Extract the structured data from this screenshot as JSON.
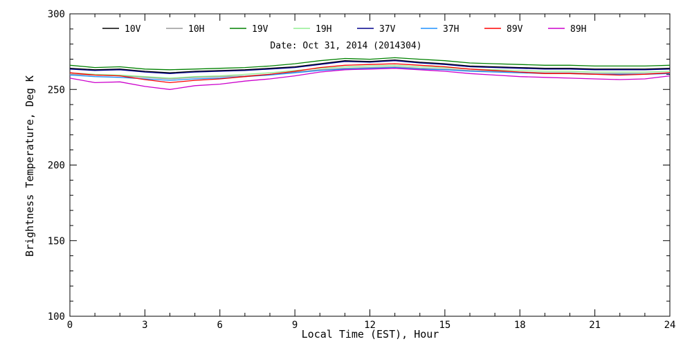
{
  "chart_data": {
    "type": "line",
    "title": "",
    "annotation": "Date: Oct 31, 2014 (2014304)",
    "xlabel": "Local Time (EST), Hour",
    "ylabel": "Brightness Temperature, Deg K",
    "xlim": [
      0,
      24
    ],
    "ylim": [
      100,
      300
    ],
    "xticks": [
      "0",
      "3",
      "6",
      "9",
      "12",
      "15",
      "18",
      "21",
      "24"
    ],
    "yticks": [
      "100",
      "150",
      "200",
      "250",
      "300"
    ],
    "grid": false,
    "legend_position": "top",
    "x": [
      0,
      1,
      2,
      3,
      4,
      5,
      6,
      7,
      8,
      9,
      10,
      11,
      12,
      13,
      14,
      15,
      16,
      17,
      18,
      19,
      20,
      21,
      22,
      23,
      24
    ],
    "series": [
      {
        "name": "10V",
        "color": "#000000",
        "values": [
          264.0,
          263.0,
          263.5,
          262.0,
          261.0,
          262.0,
          262.5,
          263.0,
          264.0,
          265.0,
          267.0,
          269.0,
          268.5,
          269.5,
          268.0,
          267.0,
          265.5,
          265.0,
          264.5,
          264.0,
          264.0,
          263.5,
          263.5,
          263.5,
          264.0
        ]
      },
      {
        "name": "10H",
        "color": "#999999",
        "values": [
          260.0,
          259.5,
          259.0,
          258.0,
          257.0,
          258.0,
          258.5,
          259.0,
          260.0,
          261.5,
          263.0,
          264.0,
          264.5,
          265.0,
          264.0,
          263.5,
          262.5,
          262.0,
          261.5,
          261.0,
          261.0,
          260.5,
          260.5,
          260.5,
          261.0
        ]
      },
      {
        "name": "19V",
        "color": "#008000",
        "values": [
          266.0,
          264.5,
          265.0,
          263.5,
          263.0,
          263.5,
          264.0,
          264.5,
          265.5,
          267.0,
          269.0,
          270.5,
          270.0,
          271.0,
          270.0,
          269.0,
          267.5,
          267.0,
          266.5,
          266.0,
          266.0,
          265.5,
          265.5,
          265.5,
          266.0
        ]
      },
      {
        "name": "19H",
        "color": "#90ee90",
        "values": [
          261.0,
          260.0,
          259.5,
          258.5,
          257.5,
          258.5,
          259.0,
          260.0,
          261.0,
          262.5,
          264.0,
          265.0,
          265.5,
          266.0,
          265.0,
          264.5,
          263.5,
          263.0,
          262.5,
          262.0,
          262.0,
          261.5,
          261.5,
          261.5,
          262.0
        ]
      },
      {
        "name": "37V",
        "color": "#00008b",
        "values": [
          263.5,
          262.5,
          263.0,
          261.5,
          260.5,
          261.5,
          262.0,
          262.5,
          263.5,
          264.5,
          266.5,
          268.5,
          268.0,
          269.0,
          267.5,
          266.5,
          265.0,
          264.5,
          264.0,
          263.5,
          263.5,
          263.0,
          263.0,
          263.0,
          263.5
        ]
      },
      {
        "name": "37H",
        "color": "#1e90ff",
        "values": [
          259.5,
          258.5,
          258.0,
          257.0,
          256.0,
          257.0,
          257.5,
          258.5,
          259.5,
          261.0,
          262.5,
          263.5,
          264.0,
          264.5,
          263.5,
          263.0,
          262.0,
          261.5,
          261.0,
          260.5,
          260.5,
          260.0,
          260.0,
          260.0,
          260.5
        ]
      },
      {
        "name": "89V",
        "color": "#ff0000",
        "values": [
          261.0,
          259.5,
          259.0,
          256.5,
          254.5,
          256.0,
          257.0,
          258.5,
          260.0,
          262.0,
          264.5,
          266.0,
          266.5,
          267.0,
          266.0,
          265.0,
          263.5,
          262.5,
          261.5,
          260.5,
          260.5,
          260.0,
          259.5,
          260.0,
          261.0
        ]
      },
      {
        "name": "89H",
        "color": "#cc00cc",
        "values": [
          257.5,
          254.5,
          255.0,
          252.0,
          250.0,
          252.5,
          253.5,
          255.5,
          257.0,
          259.0,
          261.5,
          263.0,
          263.5,
          264.0,
          263.0,
          262.0,
          260.5,
          259.5,
          258.5,
          258.0,
          257.5,
          257.0,
          256.5,
          257.0,
          259.0
        ]
      }
    ]
  }
}
